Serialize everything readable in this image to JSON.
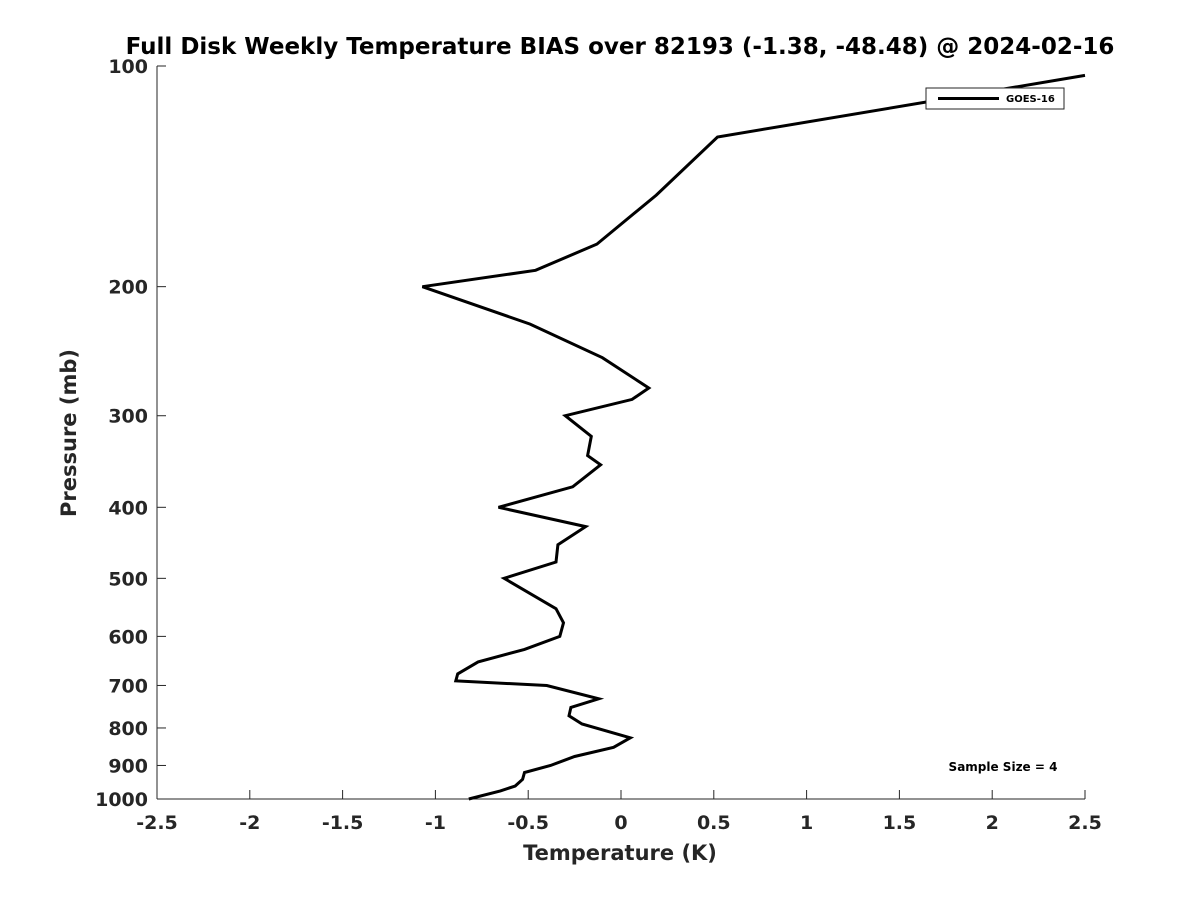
{
  "chart_data": {
    "type": "line",
    "title": "Full Disk Weekly Temperature BIAS over 82193 (-1.38, -48.48) @ 2024-02-16",
    "xlabel": "Temperature (K)",
    "ylabel": "Pressure (mb)",
    "xlim": [
      -2.5,
      2.5
    ],
    "ylim": [
      100,
      1000
    ],
    "yscale": "log",
    "y_reversed": true,
    "x_ticks": [
      -2.5,
      -2,
      -1.5,
      -1,
      -0.5,
      0,
      0.5,
      1,
      1.5,
      2,
      2.5
    ],
    "x_tick_labels": [
      "-2.5",
      "-2",
      "-1.5",
      "-1",
      "-0.5",
      "0",
      "0.5",
      "1",
      "1.5",
      "2",
      "2.5"
    ],
    "y_ticks": [
      100,
      200,
      300,
      400,
      500,
      600,
      700,
      800,
      900,
      1000
    ],
    "y_tick_labels": [
      "100",
      "200",
      "300",
      "400",
      "500",
      "600",
      "700",
      "800",
      "900",
      "1000"
    ],
    "grid": false,
    "legend_position": "top-right",
    "series": [
      {
        "name": "GOES-16",
        "color": "#000000",
        "points": [
          [
            2.5,
            103
          ],
          [
            0.52,
            125
          ],
          [
            0.19,
            150
          ],
          [
            -0.13,
            175
          ],
          [
            -0.46,
            190
          ],
          [
            -1.07,
            200
          ],
          [
            -0.49,
            225
          ],
          [
            -0.1,
            250
          ],
          [
            0.15,
            275
          ],
          [
            0.06,
            285
          ],
          [
            -0.3,
            300
          ],
          [
            -0.16,
            320
          ],
          [
            -0.18,
            340
          ],
          [
            -0.11,
            350
          ],
          [
            -0.26,
            375
          ],
          [
            -0.66,
            400
          ],
          [
            -0.19,
            425
          ],
          [
            -0.34,
            450
          ],
          [
            -0.35,
            475
          ],
          [
            -0.63,
            500
          ],
          [
            -0.35,
            550
          ],
          [
            -0.31,
            575
          ],
          [
            -0.33,
            600
          ],
          [
            -0.52,
            625
          ],
          [
            -0.77,
            650
          ],
          [
            -0.88,
            675
          ],
          [
            -0.89,
            690
          ],
          [
            -0.4,
            700
          ],
          [
            -0.12,
            730
          ],
          [
            -0.27,
            750
          ],
          [
            -0.28,
            770
          ],
          [
            -0.21,
            790
          ],
          [
            0.05,
            825
          ],
          [
            -0.04,
            850
          ],
          [
            -0.25,
            875
          ],
          [
            -0.38,
            900
          ],
          [
            -0.52,
            920
          ],
          [
            -0.53,
            940
          ],
          [
            -0.57,
            960
          ],
          [
            -0.65,
            975
          ],
          [
            -0.82,
            1000
          ]
        ]
      }
    ],
    "annotations": [
      "Sample Size = 4"
    ]
  }
}
